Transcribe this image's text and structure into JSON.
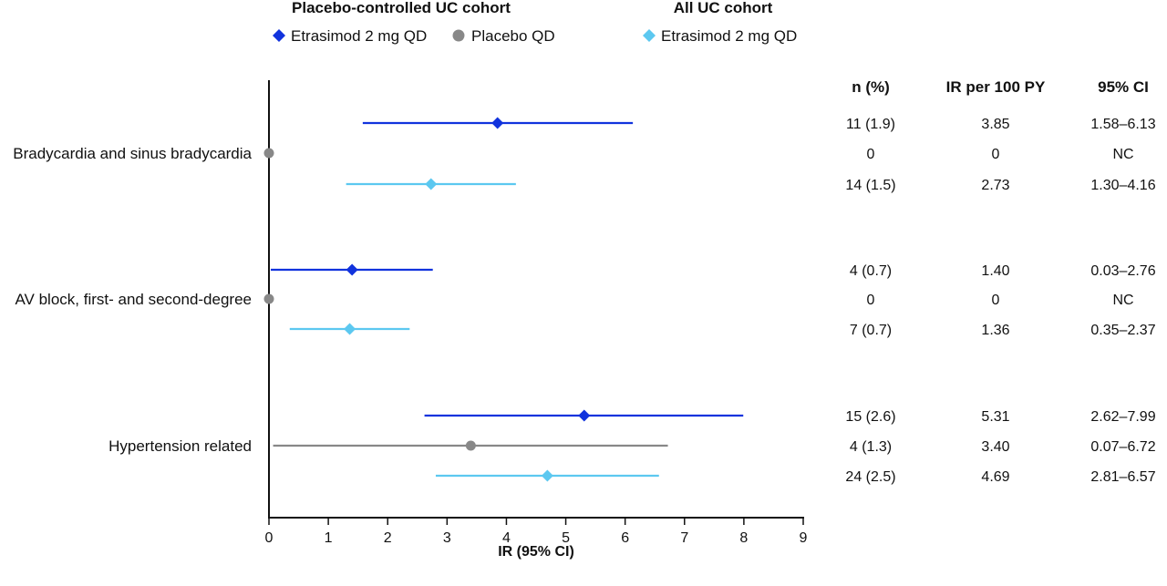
{
  "legend": {
    "groups": [
      {
        "title": "Placebo-controlled UC cohort",
        "entries": [
          {
            "label": "Etrasimod 2 mg QD",
            "color": "#1133dd",
            "marker": "diamond"
          },
          {
            "label": "Placebo QD",
            "color": "#888888",
            "marker": "circle"
          }
        ]
      },
      {
        "title": "All UC cohort",
        "entries": [
          {
            "label": "Etrasimod 2 mg QD",
            "color": "#5cc8f0",
            "marker": "diamond"
          }
        ]
      }
    ]
  },
  "table": {
    "headers": [
      "n (%)",
      "IR per 100 PY",
      "95% CI"
    ]
  },
  "chart_data": {
    "type": "forest",
    "xlabel": "IR (95% CI)",
    "xlim": [
      0,
      9
    ],
    "xticks": [
      0,
      1,
      2,
      3,
      4,
      5,
      6,
      7,
      8,
      9
    ],
    "grid": false,
    "legend_position": "top",
    "series": [
      {
        "name": "Etrasimod 2 mg QD (Placebo-controlled UC cohort)",
        "color": "#1133dd",
        "marker": "diamond"
      },
      {
        "name": "Placebo QD",
        "color": "#888888",
        "marker": "circle"
      },
      {
        "name": "Etrasimod 2 mg QD (All UC cohort)",
        "color": "#5cc8f0",
        "marker": "diamond"
      }
    ],
    "categories": [
      {
        "label": "Bradycardia and sinus bradycardia",
        "rows": [
          {
            "series": 0,
            "estimate": 3.85,
            "lower": 1.58,
            "upper": 6.13,
            "n_pct": "11 (1.9)",
            "ir": "3.85",
            "ci": "1.58–6.13"
          },
          {
            "series": 1,
            "estimate": 0,
            "lower": null,
            "upper": null,
            "n_pct": "0",
            "ir": "0",
            "ci": "NC"
          },
          {
            "series": 2,
            "estimate": 2.73,
            "lower": 1.3,
            "upper": 4.16,
            "n_pct": "14 (1.5)",
            "ir": "2.73",
            "ci": "1.30–4.16"
          }
        ]
      },
      {
        "label": "AV block, first- and second-degree",
        "rows": [
          {
            "series": 0,
            "estimate": 1.4,
            "lower": 0.03,
            "upper": 2.76,
            "n_pct": "4 (0.7)",
            "ir": "1.40",
            "ci": "0.03–2.76"
          },
          {
            "series": 1,
            "estimate": 0,
            "lower": null,
            "upper": null,
            "n_pct": "0",
            "ir": "0",
            "ci": "NC"
          },
          {
            "series": 2,
            "estimate": 1.36,
            "lower": 0.35,
            "upper": 2.37,
            "n_pct": "7 (0.7)",
            "ir": "1.36",
            "ci": "0.35–2.37"
          }
        ]
      },
      {
        "label": "Hypertension related",
        "rows": [
          {
            "series": 0,
            "estimate": 5.31,
            "lower": 2.62,
            "upper": 7.99,
            "n_pct": "15 (2.6)",
            "ir": "5.31",
            "ci": "2.62–7.99"
          },
          {
            "series": 1,
            "estimate": 3.4,
            "lower": 0.07,
            "upper": 6.72,
            "n_pct": "4 (1.3)",
            "ir": "3.40",
            "ci": "0.07–6.72"
          },
          {
            "series": 2,
            "estimate": 4.69,
            "lower": 2.81,
            "upper": 6.57,
            "n_pct": "24 (2.5)",
            "ir": "4.69",
            "ci": "2.81–6.57"
          }
        ]
      }
    ]
  }
}
